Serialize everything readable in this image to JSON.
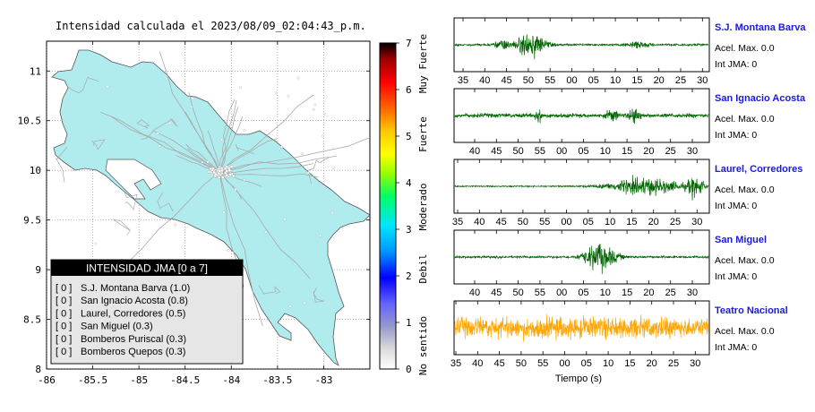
{
  "map": {
    "title": "Intensidad calculada el 2023/08/09_02:04:43_p.m.",
    "lon_ticks": [
      "-86",
      "-85.5",
      "-85",
      "-84.5",
      "-84",
      "-83.5",
      "-83"
    ],
    "lat_ticks": [
      "11",
      "10.5",
      "10",
      "9.5",
      "9",
      "8.5",
      "8"
    ],
    "land_color": "#b0ecee"
  },
  "colorbar": {
    "ticks": [
      "0",
      "1",
      "2",
      "3",
      "4",
      "5",
      "6",
      "7"
    ],
    "categories": [
      "No sentido",
      "Debil",
      "Moderado",
      "Fuerte",
      "Muy Fuerte"
    ]
  },
  "legend": {
    "title": "INTENSIDAD JMA [0 a 7]",
    "items": [
      {
        "level": "[ 0 ]",
        "name": "S.J. Montana Barva (1.0)"
      },
      {
        "level": "[ 0 ]",
        "name": "San Ignacio Acosta (0.8)"
      },
      {
        "level": "[ 0 ]",
        "name": "Laurel, Corredores (0.5)"
      },
      {
        "level": "[ 0 ]",
        "name": "San Miguel (0.3)"
      },
      {
        "level": "[ 0 ]",
        "name": "Bomberos Puriscal (0.3)"
      },
      {
        "level": "[ 0 ]",
        "name": "Bomberos Quepos (0.3)"
      }
    ]
  },
  "chart_data": [
    {
      "type": "line",
      "title": "Intensidad calculada el 2023/08/09_02:04:43_p.m.",
      "xlabel": "",
      "ylabel": "",
      "xlim": [
        -86,
        -82.5
      ],
      "ylim": [
        8,
        11.3
      ],
      "x_ticks": [
        -86,
        -85.5,
        -85,
        -84.5,
        -84,
        -83.5,
        -83
      ],
      "y_ticks": [
        8,
        8.5,
        9,
        9.5,
        10,
        10.5,
        11
      ]
    },
    {
      "type": "line",
      "station": "S.J. Montana Barva",
      "info": [
        "Acel. Max. 0.0",
        "Int JMA: 0"
      ],
      "color": "#006400",
      "x_tick_labels": [
        "35",
        "40",
        "45",
        "50",
        "55",
        "00",
        "05",
        "10",
        "15",
        "20",
        "25",
        "30"
      ]
    },
    {
      "type": "line",
      "station": "San Ignacio Acosta",
      "info": [
        "Acel. Max. 0.0",
        "Int JMA: 0"
      ],
      "color": "#006400",
      "x_tick_labels": [
        "40",
        "45",
        "50",
        "55",
        "00",
        "05",
        "10",
        "15",
        "20",
        "25",
        "30"
      ]
    },
    {
      "type": "line",
      "station": "Laurel, Corredores",
      "info": [
        "Acel. Max. 0.0",
        "Int JMA: 0"
      ],
      "color": "#006400",
      "x_tick_labels": [
        "35",
        "40",
        "45",
        "50",
        "55",
        "00",
        "05",
        "10",
        "15",
        "20",
        "25",
        "30"
      ]
    },
    {
      "type": "line",
      "station": "San Miguel",
      "info": [
        "Acel. Max. 0.0",
        "Int JMA: 0"
      ],
      "color": "#006400",
      "x_tick_labels": [
        "40",
        "45",
        "50",
        "55",
        "00",
        "05",
        "10",
        "15",
        "20",
        "25",
        "30"
      ]
    },
    {
      "type": "line",
      "station": "Teatro Nacional",
      "info": [
        "Acel. Max. 0.0",
        "Int JMA: 0"
      ],
      "color": "#ffa500",
      "xlabel": "Tiempo (s)",
      "x_tick_labels": [
        "35",
        "40",
        "45",
        "50",
        "55",
        "00",
        "05",
        "10",
        "15",
        "20",
        "25",
        "30"
      ]
    }
  ]
}
